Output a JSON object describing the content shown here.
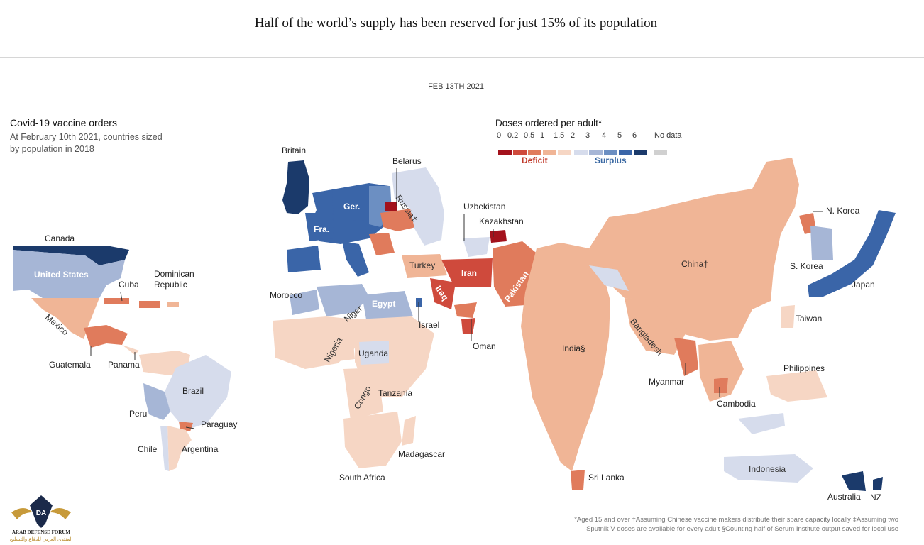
{
  "headline": "Half of the world’s supply has been reserved for just 15% of its population",
  "date": "FEB 13TH 2021",
  "title": "Covid-19 vaccine orders",
  "subtitle": "At February 10th 2021, countries sized by population in 2018",
  "legend": {
    "title": "Doses ordered per adult*",
    "ticks": [
      "0",
      "0.2",
      "0.5",
      "1",
      "1.5",
      "2",
      "3",
      "4",
      "5",
      "6",
      "No data"
    ],
    "deficit_label": "Deficit",
    "surplus_label": "Surplus",
    "colors": [
      "#a3121c",
      "#cf4a3c",
      "#e07b5c",
      "#f0b596",
      "#f6d6c4",
      "#d6dcec",
      "#a6b6d6",
      "#6c8fc2",
      "#3a65a8",
      "#1b3a6b"
    ],
    "nodata_color": "#d0d0d0"
  },
  "labels": {
    "britain": "Britain",
    "belarus": "Belarus",
    "russia": "Russia‡",
    "uzbekistan": "Uzbekistan",
    "kazakhstan": "Kazakhstan",
    "ger": "Ger.",
    "fra": "Fra.",
    "canada": "Canada",
    "united_states": "United States",
    "cuba": "Cuba",
    "dominican_republic_1": "Dominican",
    "dominican_republic_2": "Republic",
    "mexico": "Mexico",
    "guatemala": "Guatemala",
    "panama": "Panama",
    "brazil": "Brazil",
    "peru": "Peru",
    "paraguay": "Paraguay",
    "chile": "Chile",
    "argentina": "Argentina",
    "morocco": "Morocco",
    "niger": "Niger",
    "egypt": "Egypt",
    "israel": "Israel",
    "turkey": "Turkey",
    "iran": "Iran",
    "iraq": "Iraq",
    "oman": "Oman",
    "pakistan": "Pakistan",
    "nigeria": "Nigeria",
    "uganda": "Uganda",
    "congo": "Congo",
    "tanzania": "Tanzania",
    "madagascar": "Madagascar",
    "south_africa": "South Africa",
    "india": "India§",
    "sri_lanka": "Sri Lanka",
    "bangladesh": "Bangladesh",
    "myanmar": "Myanmar",
    "cambodia": "Cambodia",
    "china": "China†",
    "n_korea": "N. Korea",
    "s_korea": "S. Korea",
    "japan": "Japan",
    "taiwan": "Taiwan",
    "philippines": "Philippines",
    "indonesia": "Indonesia",
    "australia": "Australia",
    "nz": "NZ"
  },
  "footnote_1": "*Aged 15 and over †Assuming Chinese vaccine makers distribute their spare capacity locally ‡Assuming two",
  "footnote_2": "Sputnik V doses are available for every adult §Counting half of Serum Institute output saved for local use",
  "logo": {
    "line1": "ARAB DEFENSE FORUM",
    "line2": "المنتدى العربي للدفاع والتسليح",
    "mark": "DA"
  }
}
